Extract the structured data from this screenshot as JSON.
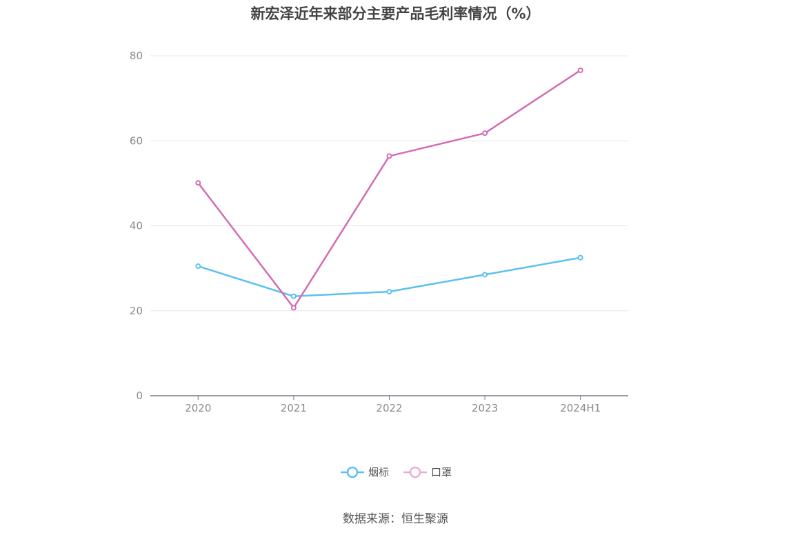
{
  "chart_data": {
    "type": "line",
    "title": "新宏泽近年来部分主要产品毛利率情况（%）",
    "categories": [
      "2020",
      "2021",
      "2022",
      "2023",
      "2024H1"
    ],
    "series": [
      {
        "name": "烟标",
        "color": "#5bc0f0",
        "values": [
          30.5,
          23.4,
          24.5,
          28.5,
          32.5
        ]
      },
      {
        "name": "口罩",
        "color": "#d46bb4",
        "values": [
          50.1,
          20.7,
          56.4,
          61.8,
          76.6
        ]
      }
    ],
    "ylim": [
      0,
      80
    ],
    "yticks": [
      0,
      20,
      40,
      60,
      80
    ],
    "grid": true,
    "legend": "bottom-center",
    "source": "数据来源：恒生聚源"
  }
}
